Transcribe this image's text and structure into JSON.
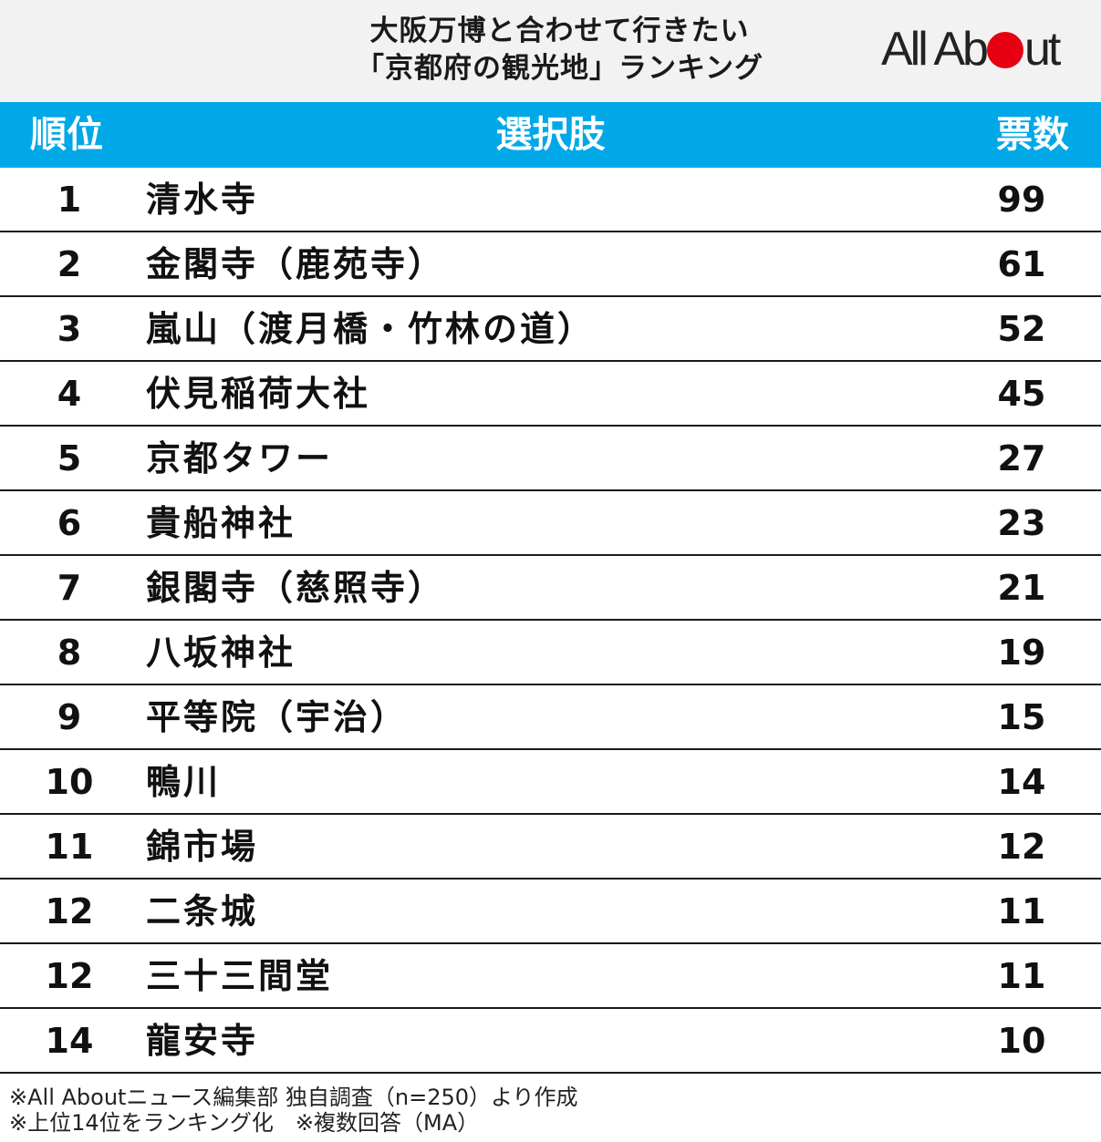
{
  "header": {
    "title_line1": "大阪万博と合わせて行きたい",
    "title_line2": "「京都府の観光地」ランキング",
    "logo_left": "All Ab",
    "logo_right": "ut",
    "logo_dot_color": "#e60012"
  },
  "chart_data": {
    "type": "table",
    "columns": [
      "順位",
      "選択肢",
      "票数"
    ],
    "rows": [
      {
        "rank": "1",
        "choice": "清水寺",
        "votes": 99
      },
      {
        "rank": "2",
        "choice": "金閣寺（鹿苑寺）",
        "votes": 61
      },
      {
        "rank": "3",
        "choice": "嵐山（渡月橋・竹林の道）",
        "votes": 52
      },
      {
        "rank": "4",
        "choice": "伏見稲荷大社",
        "votes": 45
      },
      {
        "rank": "5",
        "choice": "京都タワー",
        "votes": 27
      },
      {
        "rank": "6",
        "choice": "貴船神社",
        "votes": 23
      },
      {
        "rank": "7",
        "choice": "銀閣寺（慈照寺）",
        "votes": 21
      },
      {
        "rank": "8",
        "choice": "八坂神社",
        "votes": 19
      },
      {
        "rank": "9",
        "choice": "平等院（宇治）",
        "votes": 15
      },
      {
        "rank": "10",
        "choice": "鴨川",
        "votes": 14
      },
      {
        "rank": "11",
        "choice": "錦市場",
        "votes": 12
      },
      {
        "rank": "12",
        "choice": "二条城",
        "votes": 11
      },
      {
        "rank": "12",
        "choice": "三十三間堂",
        "votes": 11
      },
      {
        "rank": "14",
        "choice": "龍安寺",
        "votes": 10
      }
    ]
  },
  "notes": {
    "line1": "※All Aboutニュース編集部 独自調査（n=250）より作成",
    "line2": "※上位14位をランキング化　※複数回答（MA）"
  },
  "colors": {
    "header_bg": "#f2f2f2",
    "table_header_bg": "#00a8e8",
    "table_header_text": "#ffffff"
  }
}
